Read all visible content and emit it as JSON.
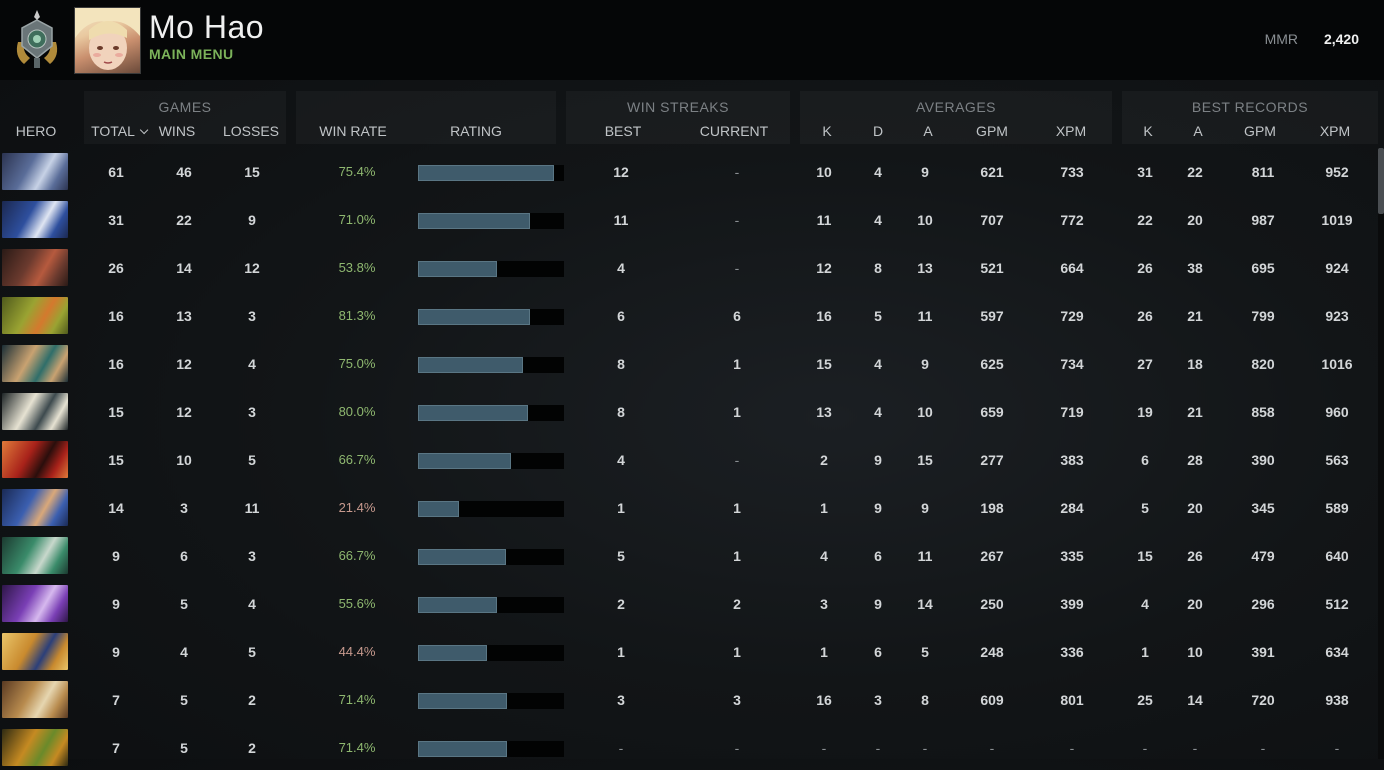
{
  "player": {
    "name": "Mo Hao",
    "main_menu_label": "MAIN MENU",
    "mmr_label": "MMR",
    "mmr_value": "2,420"
  },
  "groups": {
    "games": "GAMES",
    "win_streaks": "WIN STREAKS",
    "averages": "AVERAGES",
    "best_records": "BEST RECORDS"
  },
  "columns": {
    "hero": "HERO",
    "total": "TOTAL",
    "wins": "WINS",
    "losses": "LOSSES",
    "win_rate": "WIN RATE",
    "rating": "RATING",
    "best": "BEST",
    "current": "CURRENT",
    "avg_k": "K",
    "avg_d": "D",
    "avg_a": "A",
    "avg_gpm": "GPM",
    "avg_xpm": "XPM",
    "rec_k": "K",
    "rec_a": "A",
    "rec_gpm": "GPM",
    "rec_xpm": "XPM"
  },
  "colors": {
    "win_rate_good": "#8fb870",
    "win_rate_bad": "#c79a8e",
    "rating_bar": "#3f5b6b",
    "main_menu": "#7bb25a"
  },
  "rows": [
    {
      "total": "61",
      "wins": "46",
      "losses": "15",
      "win_rate": "75.4%",
      "rating": 0.93,
      "best": "12",
      "current": "-",
      "k": "10",
      "d": "4",
      "a": "9",
      "gpm": "621",
      "xpm": "733",
      "rk": "31",
      "ra": "22",
      "rgpm": "811",
      "rxpm": "952",
      "colors": [
        "#5a6d99",
        "#c7d2e6",
        "#2b3350"
      ]
    },
    {
      "total": "31",
      "wins": "22",
      "losses": "9",
      "win_rate": "71.0%",
      "rating": 0.77,
      "best": "11",
      "current": "-",
      "k": "11",
      "d": "4",
      "a": "10",
      "gpm": "707",
      "xpm": "772",
      "rk": "22",
      "ra": "20",
      "rgpm": "987",
      "rxpm": "1019",
      "colors": [
        "#2e4f9e",
        "#dfe5f2",
        "#1b2850"
      ]
    },
    {
      "total": "26",
      "wins": "14",
      "losses": "12",
      "win_rate": "53.8%",
      "rating": 0.54,
      "best": "4",
      "current": "-",
      "k": "12",
      "d": "8",
      "a": "13",
      "gpm": "521",
      "xpm": "664",
      "rk": "26",
      "ra": "38",
      "rgpm": "695",
      "rxpm": "924",
      "colors": [
        "#6b3a2e",
        "#b65a3e",
        "#2a1a16"
      ]
    },
    {
      "total": "16",
      "wins": "13",
      "losses": "3",
      "win_rate": "81.3%",
      "rating": 0.77,
      "best": "6",
      "current": "6",
      "k": "16",
      "d": "5",
      "a": "11",
      "gpm": "597",
      "xpm": "729",
      "rk": "26",
      "ra": "21",
      "rgpm": "799",
      "rxpm": "923",
      "colors": [
        "#9aa332",
        "#d4792e",
        "#4f5a1c"
      ]
    },
    {
      "total": "16",
      "wins": "12",
      "losses": "4",
      "win_rate": "75.0%",
      "rating": 0.72,
      "best": "8",
      "current": "1",
      "k": "15",
      "d": "4",
      "a": "9",
      "gpm": "625",
      "xpm": "734",
      "rk": "27",
      "ra": "18",
      "rgpm": "820",
      "rxpm": "1016",
      "colors": [
        "#c9a271",
        "#2f6e6a",
        "#1a2e36"
      ]
    },
    {
      "total": "15",
      "wins": "12",
      "losses": "3",
      "win_rate": "80.0%",
      "rating": 0.75,
      "best": "8",
      "current": "1",
      "k": "13",
      "d": "4",
      "a": "10",
      "gpm": "659",
      "xpm": "719",
      "rk": "19",
      "ra": "21",
      "rgpm": "858",
      "rxpm": "960",
      "colors": [
        "#e6e2d2",
        "#3d4a4e",
        "#1d2426"
      ]
    },
    {
      "total": "15",
      "wins": "10",
      "losses": "5",
      "win_rate": "66.7%",
      "rating": 0.64,
      "best": "4",
      "current": "-",
      "k": "2",
      "d": "9",
      "a": "15",
      "gpm": "277",
      "xpm": "383",
      "rk": "6",
      "ra": "28",
      "rgpm": "390",
      "rxpm": "563",
      "colors": [
        "#a8221a",
        "#2a0e0c",
        "#e07b3a"
      ]
    },
    {
      "total": "14",
      "wins": "3",
      "losses": "11",
      "win_rate": "21.4%",
      "rating": 0.28,
      "best": "1",
      "current": "1",
      "k": "1",
      "d": "9",
      "a": "9",
      "gpm": "198",
      "xpm": "284",
      "rk": "5",
      "ra": "20",
      "rgpm": "345",
      "rxpm": "589",
      "colors": [
        "#3b5fb0",
        "#d9a87a",
        "#1a2a55"
      ]
    },
    {
      "total": "9",
      "wins": "6",
      "losses": "3",
      "win_rate": "66.7%",
      "rating": 0.6,
      "best": "5",
      "current": "1",
      "k": "4",
      "d": "6",
      "a": "11",
      "gpm": "267",
      "xpm": "335",
      "rk": "15",
      "ra": "26",
      "rgpm": "479",
      "rxpm": "640",
      "colors": [
        "#3a8b6a",
        "#c8d8cc",
        "#1b3a30"
      ]
    },
    {
      "total": "9",
      "wins": "5",
      "losses": "4",
      "win_rate": "55.6%",
      "rating": 0.54,
      "best": "2",
      "current": "2",
      "k": "3",
      "d": "9",
      "a": "14",
      "gpm": "250",
      "xpm": "399",
      "rk": "4",
      "ra": "20",
      "rgpm": "296",
      "rxpm": "512",
      "colors": [
        "#7a3fb5",
        "#d6b8ee",
        "#2e1648"
      ]
    },
    {
      "total": "9",
      "wins": "4",
      "losses": "5",
      "win_rate": "44.4%",
      "rating": 0.47,
      "best": "1",
      "current": "1",
      "k": "1",
      "d": "6",
      "a": "5",
      "gpm": "248",
      "xpm": "336",
      "rk": "1",
      "ra": "10",
      "rgpm": "391",
      "rxpm": "634",
      "colors": [
        "#c98a2e",
        "#2b3f7a",
        "#e9c56a"
      ]
    },
    {
      "total": "7",
      "wins": "5",
      "losses": "2",
      "win_rate": "71.4%",
      "rating": 0.61,
      "best": "3",
      "current": "3",
      "k": "16",
      "d": "3",
      "a": "8",
      "gpm": "609",
      "xpm": "801",
      "rk": "25",
      "ra": "14",
      "rgpm": "720",
      "rxpm": "938",
      "colors": [
        "#b88b4e",
        "#e6d6b0",
        "#5a3a22"
      ]
    },
    {
      "total": "7",
      "wins": "5",
      "losses": "2",
      "win_rate": "71.4%",
      "rating": 0.61,
      "best": "-",
      "current": "-",
      "k": "-",
      "d": "-",
      "a": "-",
      "gpm": "-",
      "xpm": "-",
      "rk": "-",
      "ra": "-",
      "rgpm": "-",
      "rxpm": "-",
      "colors": [
        "#c58a22",
        "#6a8a2a",
        "#2e2a12"
      ]
    }
  ]
}
